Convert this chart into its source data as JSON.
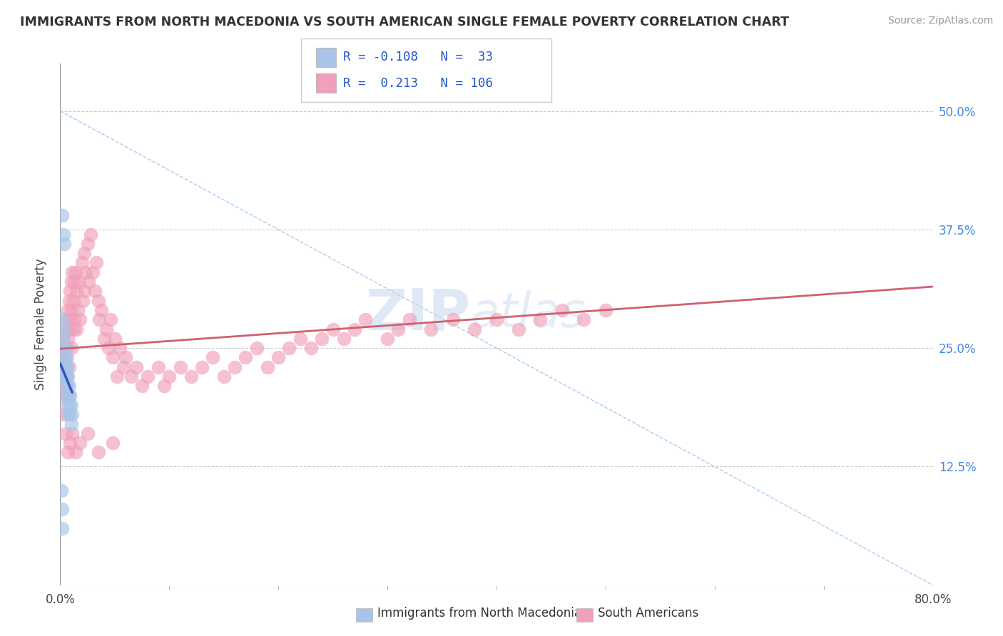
{
  "title": "IMMIGRANTS FROM NORTH MACEDONIA VS SOUTH AMERICAN SINGLE FEMALE POVERTY CORRELATION CHART",
  "source": "Source: ZipAtlas.com",
  "ylabel": "Single Female Poverty",
  "xlim": [
    0.0,
    0.8
  ],
  "ylim": [
    0.0,
    0.55
  ],
  "ytick_pos": [
    0.0,
    0.125,
    0.25,
    0.375,
    0.5
  ],
  "ytick_labels": [
    "",
    "12.5%",
    "25.0%",
    "37.5%",
    "50.0%"
  ],
  "xtick_pos": [
    0.0,
    0.8
  ],
  "xtick_labels": [
    "0.0%",
    "80.0%"
  ],
  "blue_R": -0.108,
  "blue_N": 33,
  "pink_R": 0.213,
  "pink_N": 106,
  "blue_color": "#a8c4e8",
  "pink_color": "#f0a0b8",
  "blue_line_color": "#3355bb",
  "pink_line_color": "#d06070",
  "legend_label_blue": "Immigrants from North Macedonia",
  "legend_label_pink": "South Americans",
  "watermark_zip": "ZIP",
  "watermark_atlas": "atlas",
  "background_color": "#ffffff",
  "blue_scatter_x": [
    0.002,
    0.003,
    0.003,
    0.003,
    0.004,
    0.004,
    0.004,
    0.004,
    0.005,
    0.005,
    0.005,
    0.006,
    0.006,
    0.006,
    0.007,
    0.007,
    0.007,
    0.007,
    0.007,
    0.008,
    0.008,
    0.008,
    0.009,
    0.009,
    0.01,
    0.01,
    0.011,
    0.002,
    0.003,
    0.004,
    0.001,
    0.002,
    0.002
  ],
  "blue_scatter_y": [
    0.28,
    0.26,
    0.25,
    0.23,
    0.27,
    0.24,
    0.22,
    0.21,
    0.25,
    0.23,
    0.22,
    0.24,
    0.23,
    0.2,
    0.22,
    0.21,
    0.2,
    0.19,
    0.18,
    0.21,
    0.2,
    0.19,
    0.2,
    0.18,
    0.19,
    0.17,
    0.18,
    0.39,
    0.37,
    0.36,
    0.1,
    0.08,
    0.06
  ],
  "pink_scatter_x": [
    0.001,
    0.002,
    0.002,
    0.003,
    0.003,
    0.003,
    0.004,
    0.004,
    0.005,
    0.005,
    0.005,
    0.006,
    0.006,
    0.006,
    0.007,
    0.007,
    0.008,
    0.008,
    0.008,
    0.009,
    0.009,
    0.01,
    0.01,
    0.01,
    0.011,
    0.012,
    0.012,
    0.013,
    0.013,
    0.014,
    0.015,
    0.015,
    0.016,
    0.017,
    0.018,
    0.02,
    0.021,
    0.022,
    0.022,
    0.023,
    0.025,
    0.026,
    0.028,
    0.03,
    0.032,
    0.033,
    0.035,
    0.036,
    0.038,
    0.04,
    0.042,
    0.044,
    0.046,
    0.048,
    0.05,
    0.052,
    0.055,
    0.058,
    0.06,
    0.065,
    0.07,
    0.075,
    0.08,
    0.09,
    0.095,
    0.1,
    0.11,
    0.12,
    0.13,
    0.14,
    0.15,
    0.16,
    0.17,
    0.18,
    0.19,
    0.2,
    0.21,
    0.22,
    0.23,
    0.24,
    0.25,
    0.26,
    0.27,
    0.28,
    0.3,
    0.31,
    0.32,
    0.34,
    0.36,
    0.38,
    0.4,
    0.42,
    0.44,
    0.46,
    0.48,
    0.5,
    0.003,
    0.005,
    0.007,
    0.009,
    0.011,
    0.014,
    0.018,
    0.025,
    0.035,
    0.048
  ],
  "pink_scatter_y": [
    0.22,
    0.24,
    0.21,
    0.26,
    0.23,
    0.2,
    0.25,
    0.22,
    0.27,
    0.24,
    0.21,
    0.28,
    0.25,
    0.22,
    0.29,
    0.26,
    0.3,
    0.27,
    0.23,
    0.31,
    0.28,
    0.32,
    0.29,
    0.25,
    0.33,
    0.3,
    0.27,
    0.32,
    0.28,
    0.33,
    0.31,
    0.27,
    0.29,
    0.32,
    0.28,
    0.34,
    0.3,
    0.35,
    0.31,
    0.33,
    0.36,
    0.32,
    0.37,
    0.33,
    0.31,
    0.34,
    0.3,
    0.28,
    0.29,
    0.26,
    0.27,
    0.25,
    0.28,
    0.24,
    0.26,
    0.22,
    0.25,
    0.23,
    0.24,
    0.22,
    0.23,
    0.21,
    0.22,
    0.23,
    0.21,
    0.22,
    0.23,
    0.22,
    0.23,
    0.24,
    0.22,
    0.23,
    0.24,
    0.25,
    0.23,
    0.24,
    0.25,
    0.26,
    0.25,
    0.26,
    0.27,
    0.26,
    0.27,
    0.28,
    0.26,
    0.27,
    0.28,
    0.27,
    0.28,
    0.27,
    0.28,
    0.27,
    0.28,
    0.29,
    0.28,
    0.29,
    0.18,
    0.16,
    0.14,
    0.15,
    0.16,
    0.14,
    0.15,
    0.16,
    0.14,
    0.15
  ],
  "diag_line_color": "#aaccee",
  "diag_line_start_x": 0.0,
  "diag_line_start_y": 0.5,
  "diag_line_end_x": 0.8,
  "diag_line_end_y": 0.0,
  "blue_trendline_x0": 0.0,
  "blue_trendline_x1": 0.011,
  "pink_trendline_x0": 0.0,
  "pink_trendline_x1": 0.8
}
